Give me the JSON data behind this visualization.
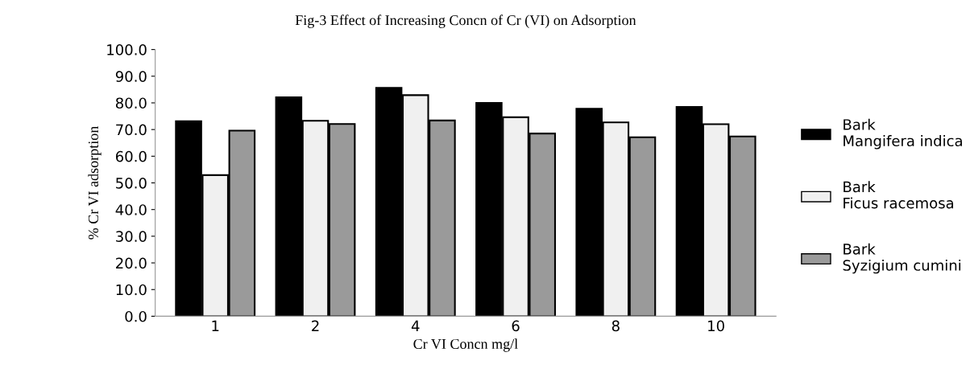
{
  "chart_data": {
    "type": "bar",
    "title": "Fig-3 Effect of Increasing Concn of Cr (VI) on Adsorption",
    "xlabel": "Cr VI Concn mg/l",
    "ylabel": "% Cr VI adsorption",
    "categories": [
      "1",
      "2",
      "4",
      "6",
      "8",
      "10"
    ],
    "series": [
      {
        "name": "Bark Mangifera indica",
        "color": "#000000",
        "values": [
          73.1,
          82.1,
          85.6,
          80.0,
          77.8,
          78.5
        ]
      },
      {
        "name": "Bark Ficus racemosa",
        "color": "#f0f0f0",
        "values": [
          52.9,
          73.3,
          82.9,
          74.6,
          72.7,
          72.0
        ]
      },
      {
        "name": "Bark Syzigium cumini",
        "color": "#9a9a9a",
        "values": [
          69.6,
          72.1,
          73.4,
          68.5,
          67.1,
          67.4
        ]
      }
    ],
    "ylim": [
      0,
      100
    ],
    "yticks": [
      {
        "value": 0,
        "label": "0.0"
      },
      {
        "value": 10,
        "label": "10.0"
      },
      {
        "value": 20,
        "label": "20.0"
      },
      {
        "value": 30,
        "label": "30.0"
      },
      {
        "value": 40,
        "label": "40.0"
      },
      {
        "value": 50,
        "label": "50.0"
      },
      {
        "value": 60,
        "label": "60.0"
      },
      {
        "value": 70,
        "label": "70.0"
      },
      {
        "value": 80,
        "label": "80.0"
      },
      {
        "value": 90,
        "label": "90.0"
      },
      {
        "value": 100,
        "label": "100.0"
      }
    ],
    "grid": false,
    "legend": "right"
  }
}
